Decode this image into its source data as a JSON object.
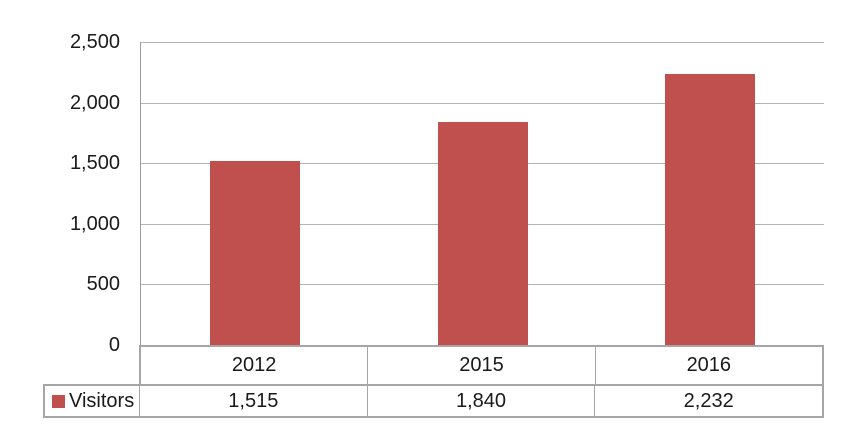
{
  "legend": {
    "label": "Visitors",
    "swatch_color": "#C0504D"
  },
  "chart_data": {
    "type": "bar",
    "title": "",
    "xlabel": "",
    "ylabel": "",
    "categories": [
      "2012",
      "2015",
      "2016"
    ],
    "series": [
      {
        "name": "Visitors",
        "values": [
          1515,
          1840,
          2232
        ]
      }
    ],
    "value_labels": [
      "1,515",
      "1,840",
      "2,232"
    ],
    "y_ticks": [
      "2,500",
      "2,000",
      "1,500",
      "1,000",
      "500",
      "0"
    ],
    "ylim": [
      0,
      2500
    ],
    "grid": true,
    "legend_position": "bottom-left-table",
    "bar_color": "#C0504D"
  },
  "colors": {
    "bar": "#C0504D",
    "gridline": "#b3b3b3",
    "axis": "#9c9c9c",
    "table_border": "#a6a6a6",
    "text": "#1a1a1a"
  }
}
